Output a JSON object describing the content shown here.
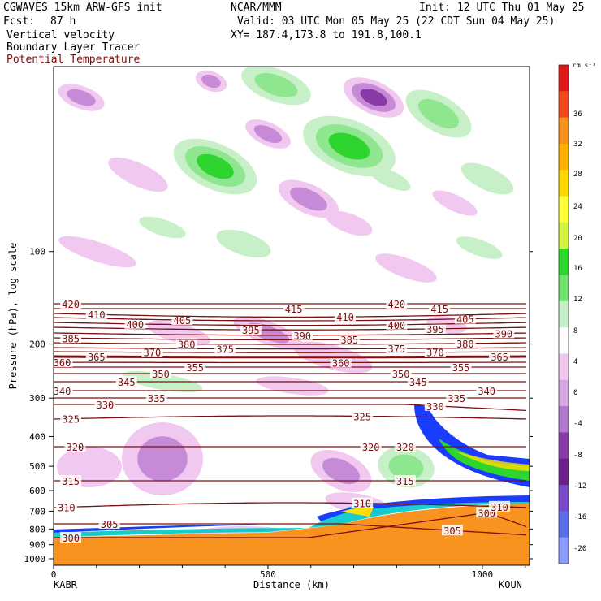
{
  "header": {
    "model": "CGWAVES 15km ARW-GFS init",
    "org": "NCAR/MMM",
    "init": "Init: 12 UTC Thu 01 May 25",
    "fcst_label": "Fcst:",
    "fcst_value": "87 h",
    "valid": "Valid: 03 UTC Mon 05 May 25 (22 CDT Sun 04 May 25)",
    "fields": [
      "Vertical velocity",
      "Boundary Layer Tracer",
      "Potential Temperature"
    ],
    "xy": "XY= 187.4,173.8 to 191.8,100.1"
  },
  "colors": {
    "theta": "#7a1010",
    "w_pos_light": "#c8f0c8",
    "w_pos_mid": "#8ee68e",
    "w_pos_strong": "#2ed52e",
    "w_neg_light": "#f0c8f0",
    "w_neg_mid": "#c78ad6",
    "w_neg_strong": "#8a3aa6",
    "pbl_orange": "#f7931e",
    "pbl_edge": "#1a3cff"
  },
  "chart_data": {
    "type": "contour-cross-section",
    "title": "",
    "xlabel": "Distance (km)",
    "ylabel": "Pressure (hPa), log scale",
    "x_ticks": [
      0,
      500,
      1000
    ],
    "x_range": [
      0,
      1110
    ],
    "y_ticks": [
      100,
      200,
      300,
      400,
      500,
      600,
      700,
      800,
      900,
      1000
    ],
    "y_range": [
      1050,
      25
    ],
    "y_scale": "log",
    "endpoints": {
      "left": "KABR",
      "right": "KOUN"
    },
    "colorbar": {
      "unit": "cm s⁻¹",
      "levels": [
        36,
        32,
        28,
        24,
        20,
        16,
        12,
        8,
        4,
        0,
        -4,
        -8,
        -12,
        -16,
        -20
      ]
    },
    "theta_contours": [
      {
        "value": 300,
        "label_x": [
          40,
          1010
        ]
      },
      {
        "value": 305,
        "label_x": [
          130,
          930
        ]
      },
      {
        "value": 310,
        "label_x": [
          30,
          720,
          1040
        ]
      },
      {
        "value": 315,
        "label_x": [
          40,
          820
        ]
      },
      {
        "value": 320,
        "label_x": [
          50,
          740,
          820
        ]
      },
      {
        "value": 325,
        "label_x": [
          40,
          720
        ]
      },
      {
        "value": 330,
        "label_x": [
          120,
          890
        ]
      },
      {
        "value": 335,
        "label_x": [
          240,
          940
        ]
      },
      {
        "value": 340,
        "label_x": [
          20,
          1010
        ]
      },
      {
        "value": 345,
        "label_x": [
          170,
          850
        ]
      },
      {
        "value": 350,
        "label_x": [
          250,
          810
        ]
      },
      {
        "value": 355,
        "label_x": [
          330,
          950
        ]
      },
      {
        "value": 360,
        "label_x": [
          20,
          670
        ]
      },
      {
        "value": 365,
        "label_x": [
          100,
          1040
        ]
      },
      {
        "value": 370,
        "label_x": [
          230,
          890
        ]
      },
      {
        "value": 375,
        "label_x": [
          400,
          800
        ]
      },
      {
        "value": 380,
        "label_x": [
          310,
          960
        ]
      },
      {
        "value": 385,
        "label_x": [
          40,
          690
        ]
      },
      {
        "value": 390,
        "label_x": [
          580,
          1050
        ]
      },
      {
        "value": 395,
        "label_x": [
          460,
          890
        ]
      },
      {
        "value": 400,
        "label_x": [
          190,
          800
        ]
      },
      {
        "value": 405,
        "label_x": [
          300,
          960
        ]
      },
      {
        "value": 410,
        "label_x": [
          100,
          680
        ]
      },
      {
        "value": 415,
        "label_x": [
          560,
          900
        ]
      },
      {
        "value": 420,
        "label_x": [
          40,
          800
        ]
      }
    ]
  }
}
